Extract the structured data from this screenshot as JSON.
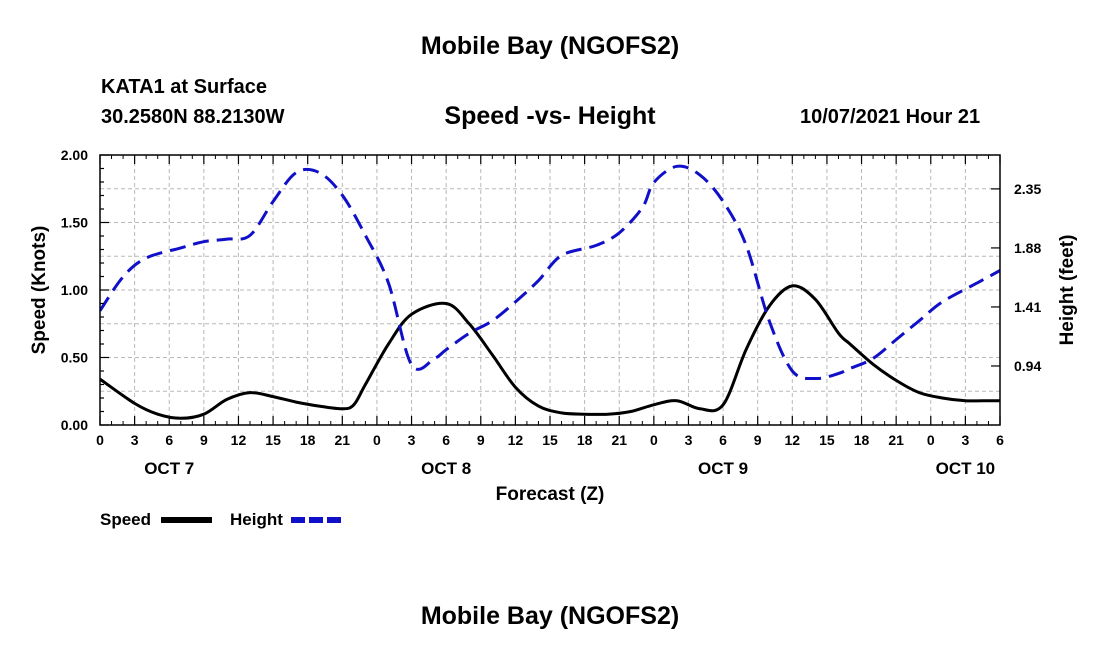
{
  "header": {
    "title_top": "Mobile Bay (NGOFS2)",
    "station": "KATA1 at Surface",
    "coords": "30.2580N  88.2130W",
    "subtitle": "Speed -vs- Height",
    "datetime": "10/07/2021 Hour 21",
    "title_bottom": "Mobile Bay (NGOFS2)"
  },
  "colors": {
    "speed": "#000000",
    "height": "#1010c8",
    "grid": "#b8b8b8"
  },
  "chart_data": {
    "type": "line",
    "xlabel": "Forecast (Z)",
    "ylabel_left": "Speed (Knots)",
    "ylabel_right": "Height (feet)",
    "x_ticks": [
      "0",
      "3",
      "6",
      "9",
      "12",
      "15",
      "18",
      "21",
      "0",
      "3",
      "6",
      "9",
      "12",
      "15",
      "18",
      "21",
      "0",
      "3",
      "6",
      "9",
      "12",
      "15",
      "18",
      "21",
      "0",
      "3",
      "6"
    ],
    "date_labels": [
      {
        "label": "OCT 7",
        "hour": 6
      },
      {
        "label": "OCT 8",
        "hour": 30
      },
      {
        "label": "OCT 9",
        "hour": 54
      },
      {
        "label": "OCT 10",
        "hour": 75
      }
    ],
    "x_range_hours": [
      0,
      78
    ],
    "ylim_left": [
      0,
      2.0
    ],
    "y_ticks_left": [
      "0.00",
      "0.50",
      "1.00",
      "1.50",
      "2.00"
    ],
    "ylim_right": [
      0.47,
      2.62
    ],
    "y_ticks_right": [
      "0.94",
      "1.41",
      "1.88",
      "2.35"
    ],
    "grid": true,
    "legend": [
      {
        "name": "Speed",
        "style": "solid"
      },
      {
        "name": "Height",
        "style": "dashed"
      }
    ],
    "series": [
      {
        "name": "Speed",
        "axis": "left",
        "x": [
          0,
          3,
          5,
          7,
          9,
          11,
          13,
          15,
          17,
          19,
          21,
          22,
          23,
          25,
          27,
          30,
          32,
          34,
          36,
          38,
          40,
          42,
          44,
          46,
          48,
          50,
          52,
          54,
          56,
          58,
          60,
          62,
          64,
          65,
          67,
          69,
          71,
          73,
          75,
          77,
          78
        ],
        "y": [
          0.34,
          0.16,
          0.08,
          0.05,
          0.08,
          0.19,
          0.24,
          0.21,
          0.17,
          0.14,
          0.12,
          0.15,
          0.3,
          0.6,
          0.82,
          0.9,
          0.75,
          0.52,
          0.28,
          0.14,
          0.09,
          0.08,
          0.08,
          0.1,
          0.15,
          0.18,
          0.12,
          0.15,
          0.56,
          0.88,
          1.03,
          0.93,
          0.68,
          0.6,
          0.45,
          0.33,
          0.24,
          0.2,
          0.18,
          0.18,
          0.18
        ]
      },
      {
        "name": "Height",
        "axis": "right",
        "x": [
          0,
          2,
          4,
          7,
          9,
          11,
          13,
          15,
          17,
          19,
          21,
          23,
          25,
          27,
          29,
          30,
          32,
          34,
          36,
          38,
          40,
          43,
          45,
          47,
          48,
          50,
          52,
          54,
          56,
          58,
          60,
          62,
          64,
          65,
          67,
          69,
          71,
          73,
          76,
          78
        ],
        "y": [
          1.38,
          1.65,
          1.8,
          1.88,
          1.93,
          1.95,
          1.98,
          2.25,
          2.48,
          2.48,
          2.3,
          1.98,
          1.6,
          0.95,
          1.0,
          1.07,
          1.2,
          1.3,
          1.45,
          1.62,
          1.82,
          1.9,
          2.0,
          2.2,
          2.4,
          2.53,
          2.46,
          2.25,
          1.9,
          1.3,
          0.9,
          0.84,
          0.88,
          0.92,
          1.0,
          1.15,
          1.3,
          1.45,
          1.6,
          1.7
        ]
      }
    ]
  }
}
